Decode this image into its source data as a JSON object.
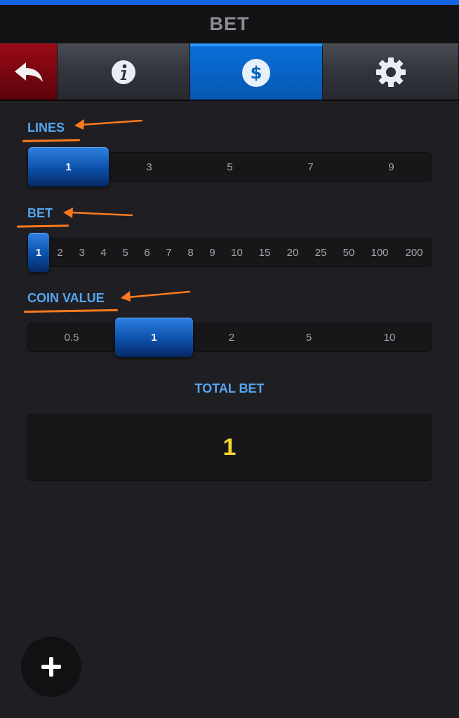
{
  "header": {
    "title": "BET"
  },
  "tabs": [
    {
      "id": "back",
      "icon": "back-arrow-icon"
    },
    {
      "id": "info",
      "icon": "info-icon"
    },
    {
      "id": "bet",
      "icon": "dollar-icon",
      "active": true
    },
    {
      "id": "settings",
      "icon": "gear-icon"
    }
  ],
  "lines": {
    "label": "LINES",
    "options": [
      "1",
      "3",
      "5",
      "7",
      "9"
    ],
    "selected": "1"
  },
  "bet": {
    "label": "BET",
    "options": [
      "1",
      "2",
      "3",
      "4",
      "5",
      "6",
      "7",
      "8",
      "9",
      "10",
      "15",
      "20",
      "25",
      "50",
      "100",
      "200"
    ],
    "selected": "1"
  },
  "coin_value": {
    "label": "COIN VALUE",
    "options": [
      "0.5",
      "1",
      "2",
      "5",
      "10"
    ],
    "selected": "1"
  },
  "total_bet": {
    "label": "TOTAL BET",
    "value": "1"
  },
  "colors": {
    "accent": "#55a5f0",
    "annotation": "#ff7a1f",
    "total_value": "#f2d42a",
    "active_tab": "#0761c2"
  },
  "fab": {
    "icon": "plus-icon"
  }
}
